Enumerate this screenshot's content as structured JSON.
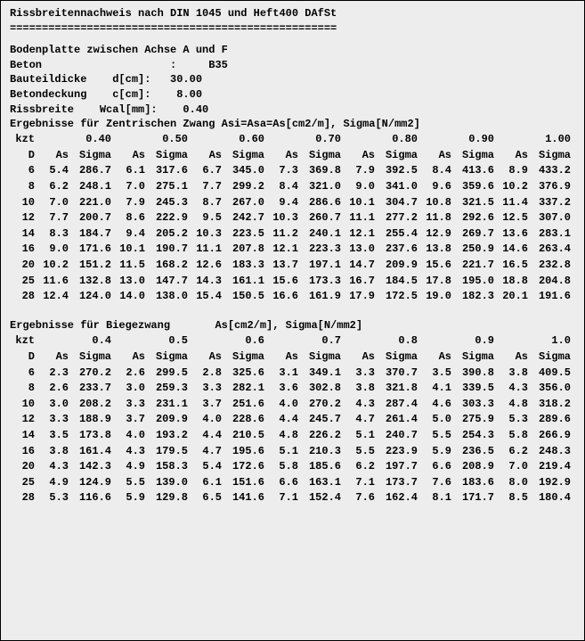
{
  "title": "Rissbreitennachweis nach DIN 1045 und Heft400 DAfSt",
  "separator": "===================================================",
  "subtitle": "Bodenplatte zwischen Achse A und F",
  "params": [
    "Beton                    :     B35",
    "Bauteildicke    d[cm]:   30.00",
    "Betondeckung    c[cm]:    8.00",
    "Rissbreite    Wcal[mm]:    0.40"
  ],
  "table1": {
    "title": "Ergebnisse für Zentrischen Zwang Asi=Asa=As[cm2/m], Sigma[N/mm2]",
    "kzt_label": "kzt",
    "kzt": [
      "0.40",
      "0.50",
      "0.60",
      "0.70",
      "0.80",
      "0.90",
      "1.00"
    ],
    "col_D": "D",
    "col_As": "As",
    "col_Sg": "Sigma",
    "rows": [
      {
        "D": "6",
        "c": [
          [
            "5.4",
            "286.7"
          ],
          [
            "6.1",
            "317.6"
          ],
          [
            "6.7",
            "345.0"
          ],
          [
            "7.3",
            "369.8"
          ],
          [
            "7.9",
            "392.5"
          ],
          [
            "8.4",
            "413.6"
          ],
          [
            "8.9",
            "433.2"
          ]
        ]
      },
      {
        "D": "8",
        "c": [
          [
            "6.2",
            "248.1"
          ],
          [
            "7.0",
            "275.1"
          ],
          [
            "7.7",
            "299.2"
          ],
          [
            "8.4",
            "321.0"
          ],
          [
            "9.0",
            "341.0"
          ],
          [
            "9.6",
            "359.6"
          ],
          [
            "10.2",
            "376.9"
          ]
        ]
      },
      {
        "D": "10",
        "c": [
          [
            "7.0",
            "221.0"
          ],
          [
            "7.9",
            "245.3"
          ],
          [
            "8.7",
            "267.0"
          ],
          [
            "9.4",
            "286.6"
          ],
          [
            "10.1",
            "304.7"
          ],
          [
            "10.8",
            "321.5"
          ],
          [
            "11.4",
            "337.2"
          ]
        ]
      },
      {
        "D": "12",
        "c": [
          [
            "7.7",
            "200.7"
          ],
          [
            "8.6",
            "222.9"
          ],
          [
            "9.5",
            "242.7"
          ],
          [
            "10.3",
            "260.7"
          ],
          [
            "11.1",
            "277.2"
          ],
          [
            "11.8",
            "292.6"
          ],
          [
            "12.5",
            "307.0"
          ]
        ]
      },
      {
        "D": "14",
        "c": [
          [
            "8.3",
            "184.7"
          ],
          [
            "9.4",
            "205.2"
          ],
          [
            "10.3",
            "223.5"
          ],
          [
            "11.2",
            "240.1"
          ],
          [
            "12.1",
            "255.4"
          ],
          [
            "12.9",
            "269.7"
          ],
          [
            "13.6",
            "283.1"
          ]
        ]
      },
      {
        "D": "16",
        "c": [
          [
            "9.0",
            "171.6"
          ],
          [
            "10.1",
            "190.7"
          ],
          [
            "11.1",
            "207.8"
          ],
          [
            "12.1",
            "223.3"
          ],
          [
            "13.0",
            "237.6"
          ],
          [
            "13.8",
            "250.9"
          ],
          [
            "14.6",
            "263.4"
          ]
        ]
      },
      {
        "D": "20",
        "c": [
          [
            "10.2",
            "151.2"
          ],
          [
            "11.5",
            "168.2"
          ],
          [
            "12.6",
            "183.3"
          ],
          [
            "13.7",
            "197.1"
          ],
          [
            "14.7",
            "209.9"
          ],
          [
            "15.6",
            "221.7"
          ],
          [
            "16.5",
            "232.8"
          ]
        ]
      },
      {
        "D": "25",
        "c": [
          [
            "11.6",
            "132.8"
          ],
          [
            "13.0",
            "147.7"
          ],
          [
            "14.3",
            "161.1"
          ],
          [
            "15.6",
            "173.3"
          ],
          [
            "16.7",
            "184.5"
          ],
          [
            "17.8",
            "195.0"
          ],
          [
            "18.8",
            "204.8"
          ]
        ]
      },
      {
        "D": "28",
        "c": [
          [
            "12.4",
            "124.0"
          ],
          [
            "14.0",
            "138.0"
          ],
          [
            "15.4",
            "150.5"
          ],
          [
            "16.6",
            "161.9"
          ],
          [
            "17.9",
            "172.5"
          ],
          [
            "19.0",
            "182.3"
          ],
          [
            "20.1",
            "191.6"
          ]
        ]
      }
    ]
  },
  "table2": {
    "title": "Ergebnisse für Biegezwang       As[cm2/m], Sigma[N/mm2]",
    "kzt_label": "kzt",
    "kzt": [
      "0.4",
      "0.5",
      "0.6",
      "0.7",
      "0.8",
      "0.9",
      "1.0"
    ],
    "col_D": "D",
    "col_As": "As",
    "col_Sg": "Sigma",
    "rows": [
      {
        "D": "6",
        "c": [
          [
            "2.3",
            "270.2"
          ],
          [
            "2.6",
            "299.5"
          ],
          [
            "2.8",
            "325.6"
          ],
          [
            "3.1",
            "349.1"
          ],
          [
            "3.3",
            "370.7"
          ],
          [
            "3.5",
            "390.8"
          ],
          [
            "3.8",
            "409.5"
          ]
        ]
      },
      {
        "D": "8",
        "c": [
          [
            "2.6",
            "233.7"
          ],
          [
            "3.0",
            "259.3"
          ],
          [
            "3.3",
            "282.1"
          ],
          [
            "3.6",
            "302.8"
          ],
          [
            "3.8",
            "321.8"
          ],
          [
            "4.1",
            "339.5"
          ],
          [
            "4.3",
            "356.0"
          ]
        ]
      },
      {
        "D": "10",
        "c": [
          [
            "3.0",
            "208.2"
          ],
          [
            "3.3",
            "231.1"
          ],
          [
            "3.7",
            "251.6"
          ],
          [
            "4.0",
            "270.2"
          ],
          [
            "4.3",
            "287.4"
          ],
          [
            "4.6",
            "303.3"
          ],
          [
            "4.8",
            "318.2"
          ]
        ]
      },
      {
        "D": "12",
        "c": [
          [
            "3.3",
            "188.9"
          ],
          [
            "3.7",
            "209.9"
          ],
          [
            "4.0",
            "228.6"
          ],
          [
            "4.4",
            "245.7"
          ],
          [
            "4.7",
            "261.4"
          ],
          [
            "5.0",
            "275.9"
          ],
          [
            "5.3",
            "289.6"
          ]
        ]
      },
      {
        "D": "14",
        "c": [
          [
            "3.5",
            "173.8"
          ],
          [
            "4.0",
            "193.2"
          ],
          [
            "4.4",
            "210.5"
          ],
          [
            "4.8",
            "226.2"
          ],
          [
            "5.1",
            "240.7"
          ],
          [
            "5.5",
            "254.3"
          ],
          [
            "5.8",
            "266.9"
          ]
        ]
      },
      {
        "D": "16",
        "c": [
          [
            "3.8",
            "161.4"
          ],
          [
            "4.3",
            "179.5"
          ],
          [
            "4.7",
            "195.6"
          ],
          [
            "5.1",
            "210.3"
          ],
          [
            "5.5",
            "223.9"
          ],
          [
            "5.9",
            "236.5"
          ],
          [
            "6.2",
            "248.3"
          ]
        ]
      },
      {
        "D": "20",
        "c": [
          [
            "4.3",
            "142.3"
          ],
          [
            "4.9",
            "158.3"
          ],
          [
            "5.4",
            "172.6"
          ],
          [
            "5.8",
            "185.6"
          ],
          [
            "6.2",
            "197.7"
          ],
          [
            "6.6",
            "208.9"
          ],
          [
            "7.0",
            "219.4"
          ]
        ]
      },
      {
        "D": "25",
        "c": [
          [
            "4.9",
            "124.9"
          ],
          [
            "5.5",
            "139.0"
          ],
          [
            "6.1",
            "151.6"
          ],
          [
            "6.6",
            "163.1"
          ],
          [
            "7.1",
            "173.7"
          ],
          [
            "7.6",
            "183.6"
          ],
          [
            "8.0",
            "192.9"
          ]
        ]
      },
      {
        "D": "28",
        "c": [
          [
            "5.3",
            "116.6"
          ],
          [
            "5.9",
            "129.8"
          ],
          [
            "6.5",
            "141.6"
          ],
          [
            "7.1",
            "152.4"
          ],
          [
            "7.6",
            "162.4"
          ],
          [
            "8.1",
            "171.7"
          ],
          [
            "8.5",
            "180.4"
          ]
        ]
      }
    ]
  }
}
